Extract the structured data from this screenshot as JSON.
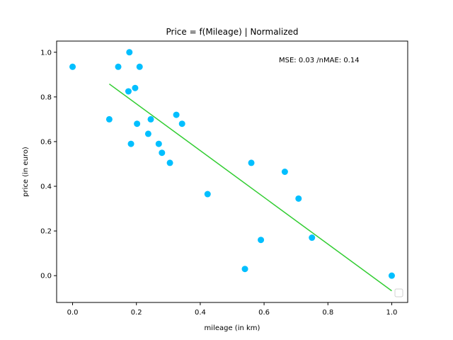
{
  "chart_data": {
    "type": "scatter",
    "title": "Price = f(Mileage) | Normalized",
    "xlabel": "mileage (in km)",
    "ylabel": "price (in euro)",
    "xlim": [
      -0.05,
      1.05
    ],
    "ylim": [
      -0.12,
      1.05
    ],
    "xticks": [
      0.0,
      0.2,
      0.4,
      0.6,
      0.8,
      1.0
    ],
    "xtick_labels": [
      "0.0",
      "0.2",
      "0.4",
      "0.6",
      "0.8",
      "1.0"
    ],
    "yticks": [
      0.0,
      0.2,
      0.4,
      0.6,
      0.8,
      1.0
    ],
    "ytick_labels": [
      "0.0",
      "0.2",
      "0.4",
      "0.6",
      "0.8",
      "1.0"
    ],
    "grid": false,
    "legend": "bottom-right",
    "annotation": "MSE: 0.03 /nMAE: 0.14",
    "series": [
      {
        "kind": "scatter",
        "color": "#00BFFF",
        "points": [
          [
            0.0,
            0.935
          ],
          [
            0.115,
            0.7
          ],
          [
            0.143,
            0.935
          ],
          [
            0.175,
            0.825
          ],
          [
            0.178,
            1.0
          ],
          [
            0.183,
            0.59
          ],
          [
            0.196,
            0.84
          ],
          [
            0.202,
            0.68
          ],
          [
            0.21,
            0.935
          ],
          [
            0.237,
            0.635
          ],
          [
            0.245,
            0.7
          ],
          [
            0.27,
            0.59
          ],
          [
            0.28,
            0.55
          ],
          [
            0.305,
            0.505
          ],
          [
            0.325,
            0.72
          ],
          [
            0.343,
            0.68
          ],
          [
            0.423,
            0.365
          ],
          [
            0.54,
            0.03
          ],
          [
            0.56,
            0.505
          ],
          [
            0.59,
            0.16
          ],
          [
            0.665,
            0.465
          ],
          [
            0.708,
            0.345
          ],
          [
            0.75,
            0.17
          ],
          [
            1.0,
            0.0
          ]
        ]
      },
      {
        "kind": "line",
        "color": "#32CD32",
        "points": [
          [
            0.115,
            0.858
          ],
          [
            1.0,
            -0.068
          ]
        ]
      }
    ]
  }
}
